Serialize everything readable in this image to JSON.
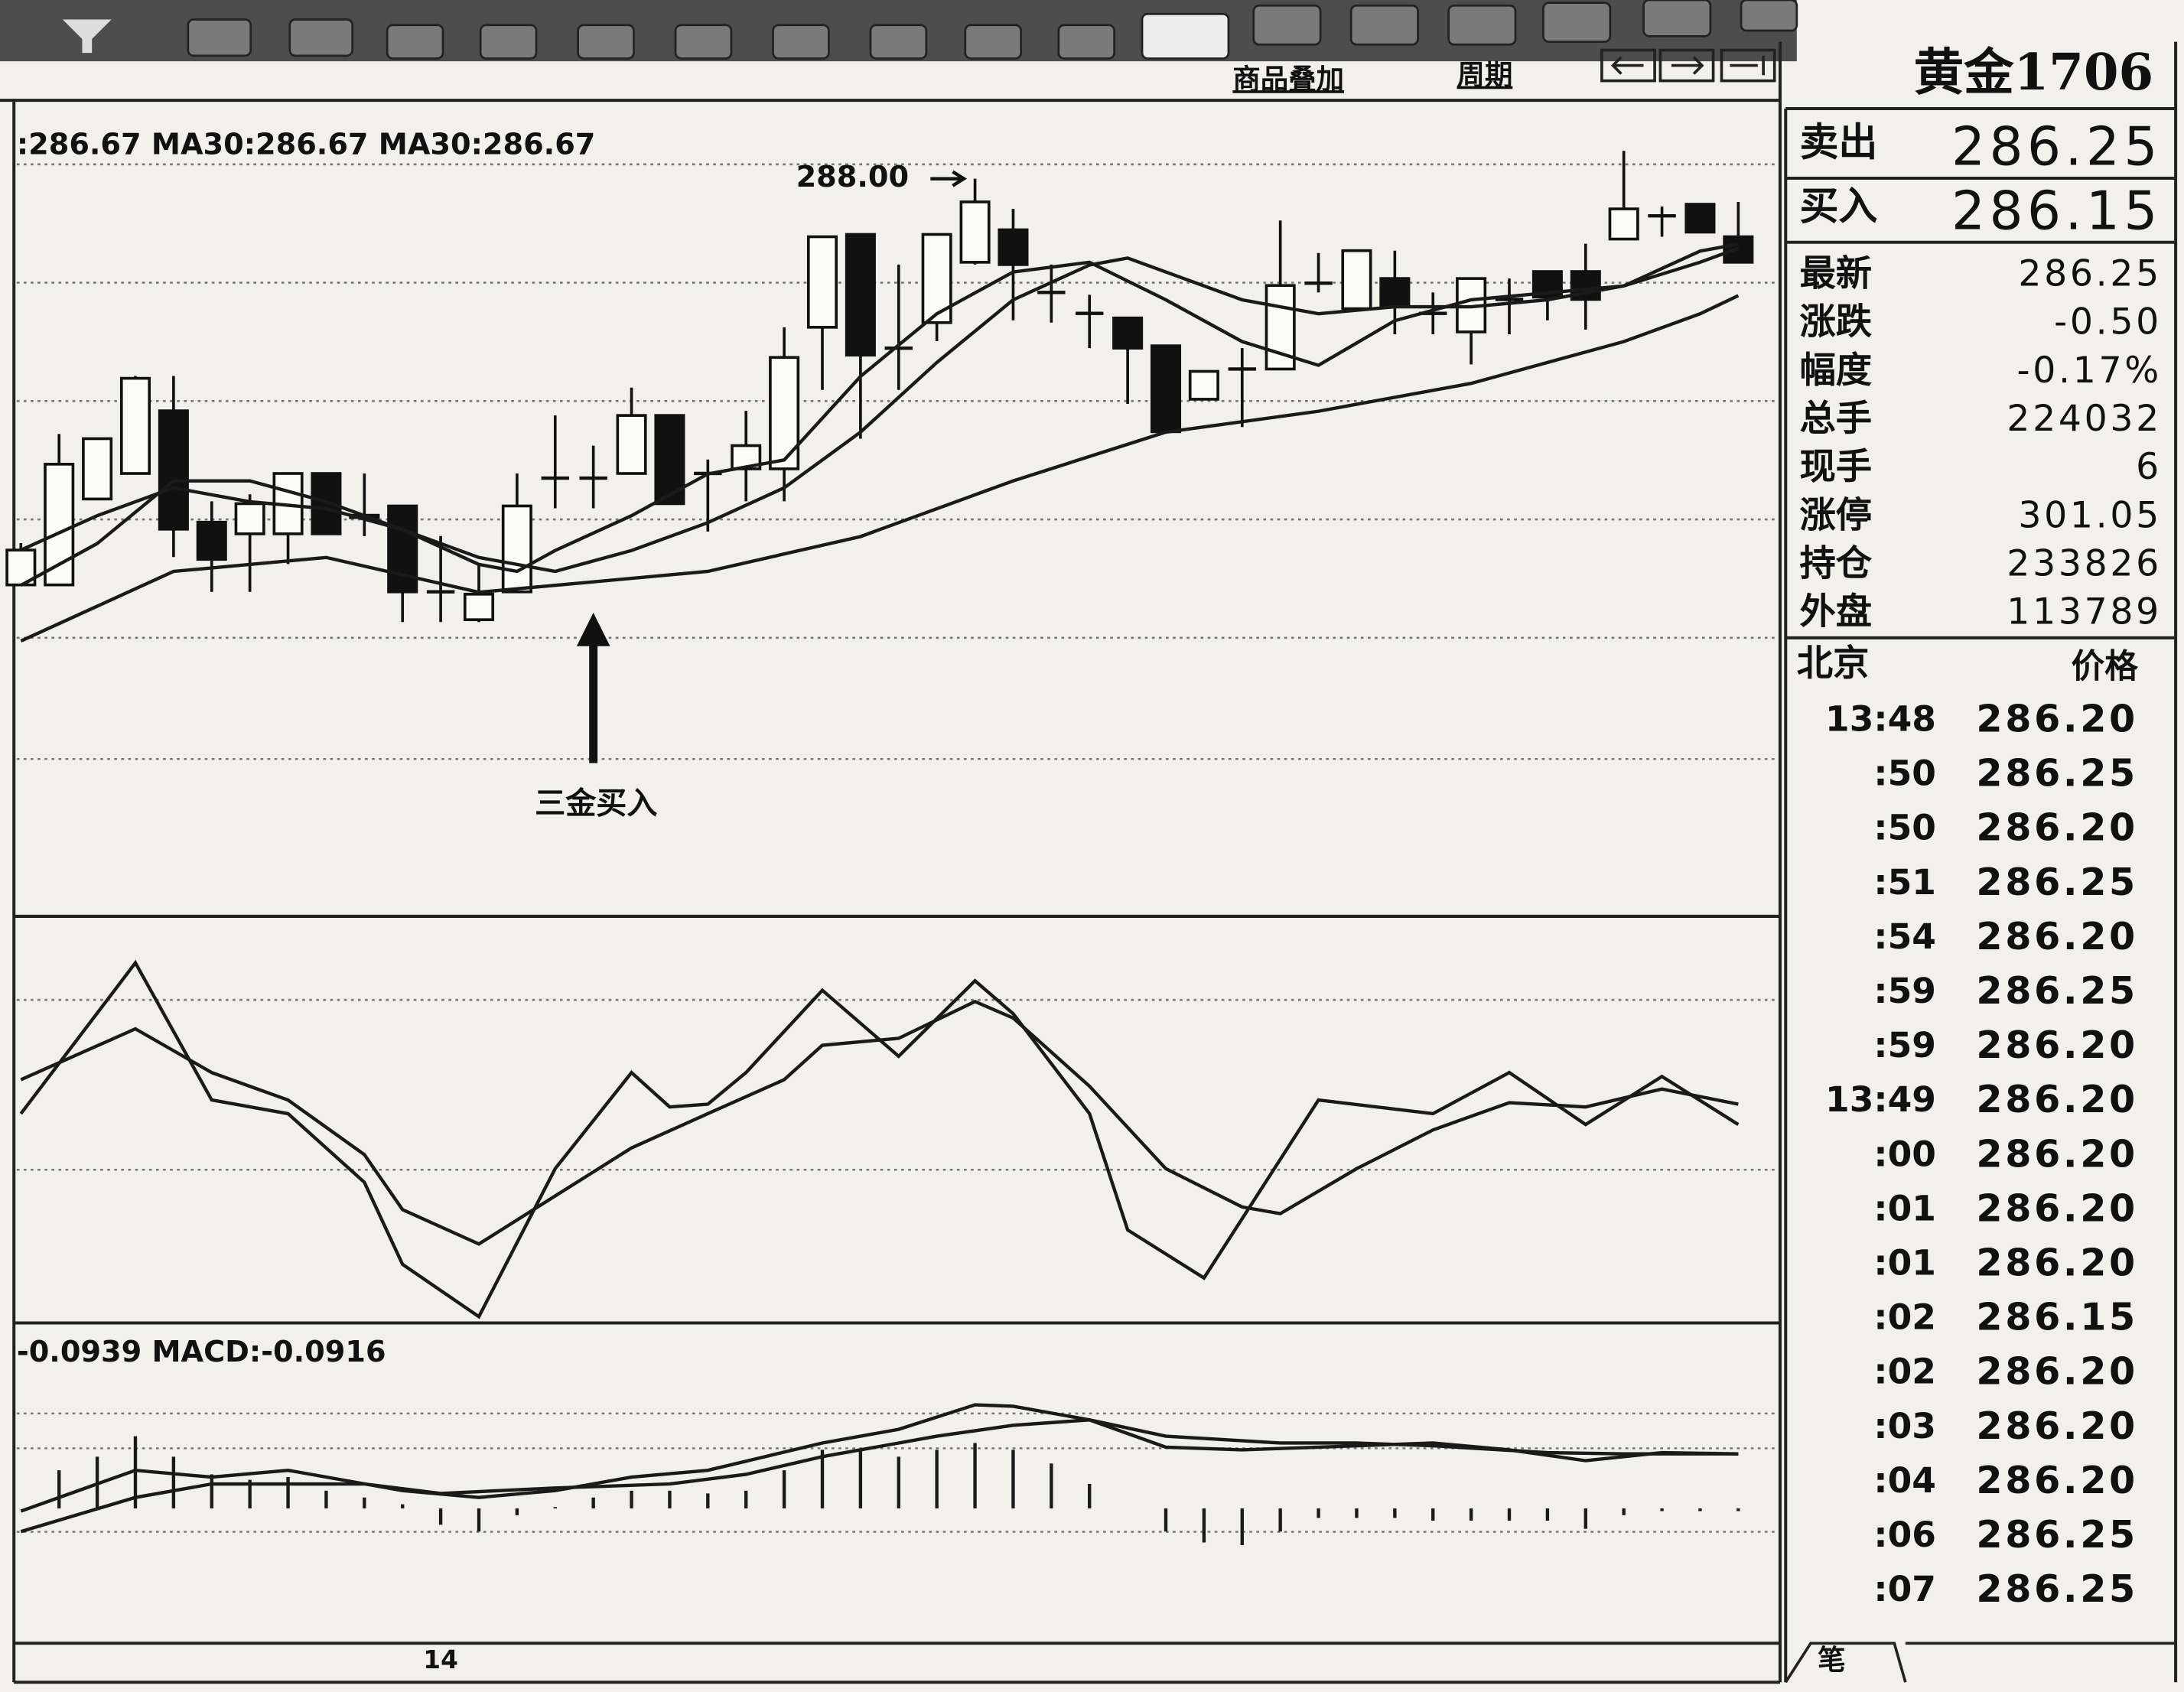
{
  "toolbar": {
    "links": [
      "商品叠加",
      "周期"
    ]
  },
  "chart_data": [
    {
      "type": "candlestick",
      "legend": ":286.67 MA30:286.67 MA30:286.67",
      "categories": [
        null,
        null,
        null,
        null,
        null,
        null,
        null,
        null,
        null,
        null,
        null,
        "14",
        null,
        null,
        null,
        null,
        null,
        null,
        null,
        null,
        null,
        null,
        null,
        null,
        null,
        null,
        null,
        null,
        null,
        null,
        null,
        null,
        null,
        null,
        null,
        null,
        null,
        null,
        null,
        null,
        null,
        null,
        null,
        null,
        null,
        null
      ],
      "open": [
        279.25,
        279.25,
        281.1,
        281.65,
        283.0,
        280.6,
        280.35,
        280.35,
        281.65,
        280.75,
        280.95,
        279.1,
        278.5,
        279.1,
        281.55,
        281.55,
        281.65,
        282.9,
        281.65,
        281.75,
        281.75,
        284.8,
        286.8,
        284.35,
        284.9,
        286.2,
        286.9,
        285.55,
        285.1,
        285.0,
        284.4,
        283.25,
        283.9,
        283.9,
        285.75,
        285.2,
        285.85,
        285.1,
        284.7,
        285.4,
        286.0,
        286.0,
        286.7,
        287.2,
        287.45,
        286.75
      ],
      "high": [
        280.15,
        282.5,
        282.4,
        283.75,
        283.75,
        281.05,
        281.2,
        281.65,
        281.65,
        281.65,
        280.95,
        280.3,
        279.7,
        281.65,
        282.9,
        282.25,
        283.5,
        282.9,
        281.95,
        283.0,
        284.8,
        286.75,
        286.8,
        286.15,
        286.8,
        288.0,
        287.35,
        286.15,
        285.5,
        285.0,
        284.4,
        283.85,
        284.35,
        287.1,
        286.4,
        286.45,
        286.45,
        285.55,
        285.85,
        285.85,
        286.0,
        286.6,
        288.6,
        287.4,
        287.45,
        287.5
      ],
      "low": [
        279.25,
        279.25,
        281.1,
        281.65,
        279.85,
        279.1,
        279.1,
        279.7,
        280.35,
        280.3,
        278.45,
        278.45,
        278.45,
        279.1,
        280.9,
        280.9,
        281.65,
        281.0,
        280.4,
        281.05,
        281.05,
        283.45,
        282.4,
        283.45,
        284.5,
        286.15,
        284.95,
        284.9,
        284.35,
        283.15,
        282.55,
        283.25,
        282.65,
        283.9,
        285.55,
        285.2,
        284.65,
        284.65,
        284.0,
        284.65,
        284.95,
        284.75,
        286.7,
        286.75,
        286.85,
        286.2
      ],
      "close": [
        280.0,
        281.85,
        282.4,
        283.7,
        280.45,
        279.8,
        281.0,
        281.65,
        280.35,
        280.7,
        279.1,
        279.1,
        279.05,
        280.95,
        281.55,
        281.55,
        282.9,
        281.0,
        281.65,
        282.25,
        284.15,
        286.75,
        284.2,
        284.35,
        286.8,
        287.5,
        286.15,
        285.55,
        285.1,
        284.35,
        282.55,
        283.85,
        283.9,
        285.7,
        285.75,
        286.45,
        285.25,
        285.1,
        285.85,
        285.4,
        285.45,
        285.4,
        287.35,
        287.2,
        286.85,
        286.2
      ],
      "color": "#111111",
      "ylim": [
        272.2,
        289.6
      ],
      "series": [
        {
          "color": "#1a1a1a",
          "x": [
            0,
            2,
            4,
            6,
            8,
            10,
            12,
            13,
            14,
            16,
            18,
            20,
            22,
            24,
            26,
            28,
            30,
            32,
            34,
            36,
            38,
            40,
            42,
            44,
            45
          ],
          "values": [
            280.0,
            280.74,
            281.34,
            281.04,
            280.89,
            280.44,
            279.69,
            279.54,
            279.99,
            280.74,
            281.64,
            281.94,
            283.74,
            285.09,
            285.99,
            286.2,
            285.39,
            284.49,
            283.98,
            284.94,
            285.39,
            285.54,
            285.69,
            286.44,
            286.59
          ]
        },
        {
          "color": "#1a1a1a",
          "x": [
            0,
            2,
            4,
            6,
            8,
            10,
            12,
            14,
            16,
            18,
            20,
            22,
            24,
            26,
            28,
            29,
            30,
            32,
            34,
            36,
            38,
            40,
            42,
            44,
            45
          ],
          "values": [
            279.24,
            280.14,
            281.49,
            281.49,
            281.04,
            280.44,
            279.84,
            279.54,
            279.99,
            280.59,
            281.34,
            282.54,
            284.04,
            285.39,
            286.14,
            286.29,
            285.99,
            285.39,
            285.09,
            285.24,
            285.24,
            285.39,
            285.69,
            286.2,
            286.5
          ]
        },
        {
          "color": "#1a1a1a",
          "x": [
            0,
            4,
            8,
            12,
            14,
            18,
            22,
            26,
            30,
            34,
            38,
            42,
            44,
            45
          ],
          "values": [
            278.04,
            279.54,
            279.84,
            279.09,
            279.24,
            279.54,
            280.29,
            281.49,
            282.54,
            282.99,
            283.59,
            284.49,
            285.09,
            285.48
          ]
        }
      ],
      "annotations": [
        {
          "value": 288,
          "label": "288.00"
        },
        {
          "label": "三金买入"
        }
      ]
    },
    {
      "type": "line",
      "ylim": [
        -2,
        100
      ],
      "series": [
        {
          "color": "#1a1a1a",
          "x": [
            0,
            3,
            5,
            7,
            9,
            10,
            12,
            14,
            16,
            17,
            18,
            19,
            21,
            23,
            25,
            26,
            28,
            29,
            31,
            34,
            37,
            39,
            41,
            43,
            45
          ],
          "values": [
            50.9,
            89.5,
            54.4,
            50.9,
            33.3,
            12.3,
            -1.1,
            36.8,
            61.4,
            52.6,
            53.3,
            61.4,
            82.5,
            65.6,
            84.9,
            76.5,
            50.9,
            21.1,
            8.8,
            54.4,
            50.9,
            61.4,
            48.1,
            60.4,
            48.1
          ]
        },
        {
          "color": "#1a1a1a",
          "x": [
            0,
            3,
            5,
            7,
            9,
            10,
            12,
            14,
            16,
            18,
            20,
            21,
            23,
            25,
            26,
            28,
            30,
            32,
            33,
            35,
            37,
            39,
            41,
            43,
            45
          ],
          "values": [
            59.6,
            72.6,
            61.4,
            54.4,
            40.4,
            26.3,
            17.5,
            29.8,
            42.1,
            50.9,
            59.6,
            68.4,
            70.2,
            79.6,
            75.4,
            57.9,
            36.8,
            27.0,
            25.3,
            36.8,
            46.7,
            53.7,
            52.6,
            57.2,
            53.3
          ]
        }
      ]
    },
    {
      "type": "macd",
      "legend": "-0.0939 MACD:-0.0916",
      "ylim": [
        -0.97,
        1.28
      ],
      "color": "#1a1a1a",
      "values": [
        null,
        0.28,
        0.38,
        0.53,
        0.38,
        0.25,
        0.21,
        0.23,
        0.13,
        0.08,
        0.03,
        -0.12,
        -0.17,
        -0.05,
        0.01,
        0.08,
        0.13,
        0.13,
        0.11,
        0.13,
        0.28,
        0.43,
        0.43,
        0.38,
        0.43,
        0.48,
        0.43,
        0.33,
        0.18,
        null,
        -0.17,
        -0.25,
        -0.27,
        -0.17,
        -0.07,
        -0.07,
        -0.07,
        -0.09,
        -0.09,
        -0.09,
        -0.09,
        -0.15,
        -0.05,
        -0.02,
        -0.02,
        -0.02
      ],
      "series": [
        {
          "color": "#1a1a1a",
          "x": [
            0,
            3,
            5,
            7,
            10,
            12,
            14,
            16,
            18,
            21,
            23,
            25,
            26,
            28,
            30,
            32,
            34,
            37,
            39,
            41,
            43,
            45
          ],
          "values": [
            -0.02,
            0.28,
            0.23,
            0.28,
            0.13,
            0.08,
            0.13,
            0.23,
            0.28,
            0.48,
            0.58,
            0.76,
            0.75,
            0.65,
            0.45,
            0.43,
            0.45,
            0.48,
            0.43,
            0.35,
            0.41,
            0.4
          ]
        },
        {
          "color": "#1a1a1a",
          "x": [
            0,
            3,
            5,
            9,
            11,
            14,
            17,
            19,
            21,
            24,
            26,
            28,
            30,
            33,
            35,
            37,
            40,
            42,
            45
          ],
          "values": [
            -0.17,
            0.08,
            0.18,
            0.18,
            0.11,
            0.15,
            0.18,
            0.25,
            0.38,
            0.53,
            0.61,
            0.65,
            0.53,
            0.48,
            0.48,
            0.46,
            0.41,
            0.4,
            0.4
          ]
        }
      ]
    }
  ],
  "quote": {
    "title": "黄金1706",
    "sell": {
      "label": "卖出",
      "value": "286.25"
    },
    "buy": {
      "label": "买入",
      "value": "286.15"
    },
    "stats": [
      {
        "label": "最新",
        "value": "286.25"
      },
      {
        "label": "涨跌",
        "value": "-0.50"
      },
      {
        "label": "幅度",
        "value": "-0.17%"
      },
      {
        "label": "总手",
        "value": "224032"
      },
      {
        "label": "现手",
        "value": "6"
      },
      {
        "label": "涨停",
        "value": "301.05"
      },
      {
        "label": "持仓",
        "value": "233826"
      },
      {
        "label": "外盘",
        "value": "113789"
      }
    ],
    "ticks_header": [
      "北京",
      "价格"
    ],
    "ticks": [
      [
        "13:48",
        "286.20"
      ],
      [
        ":50",
        "286.25"
      ],
      [
        ":50",
        "286.20"
      ],
      [
        ":51",
        "286.25"
      ],
      [
        ":54",
        "286.20"
      ],
      [
        ":59",
        "286.25"
      ],
      [
        ":59",
        "286.20"
      ],
      [
        "13:49",
        "286.20"
      ],
      [
        ":00",
        "286.20"
      ],
      [
        ":01",
        "286.20"
      ],
      [
        ":01",
        "286.20"
      ],
      [
        ":02",
        "286.15"
      ],
      [
        ":02",
        "286.20"
      ],
      [
        ":03",
        "286.20"
      ],
      [
        ":04",
        "286.20"
      ],
      [
        ":06",
        "286.25"
      ],
      [
        ":07",
        "286.25"
      ]
    ],
    "tab": "笔"
  }
}
